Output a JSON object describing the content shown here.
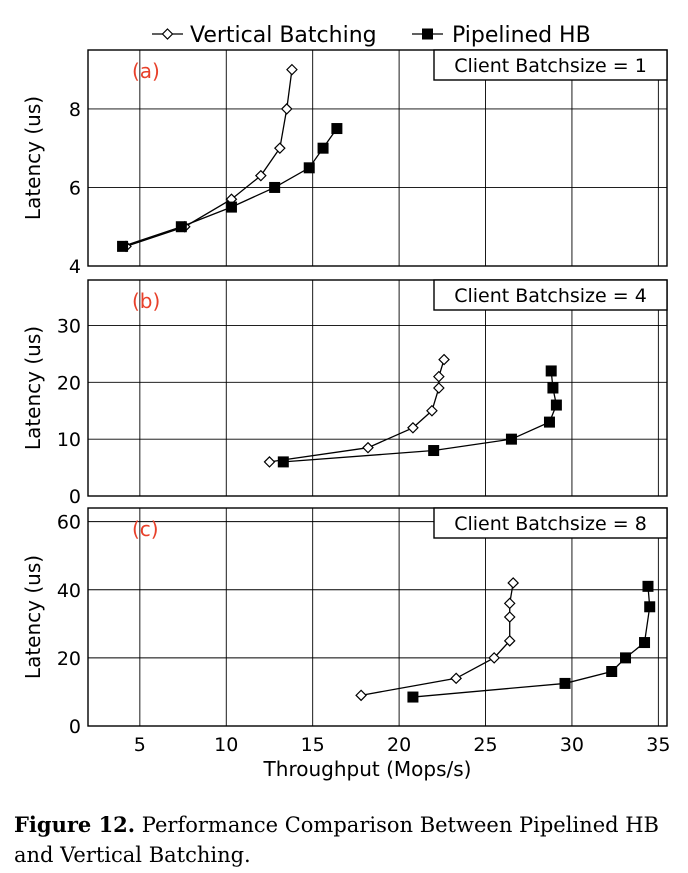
{
  "caption": {
    "label": "Figure 12.",
    "text": "Performance Comparison Between Pipelined HB and Vertical Batching."
  },
  "chart_data": {
    "type": "line",
    "xlabel": "Throughput (Mops/s)",
    "xlim": [
      2,
      35.5
    ],
    "xticks": [
      5,
      10,
      15,
      20,
      25,
      30,
      35
    ],
    "legend": {
      "placement": "top",
      "entries": [
        {
          "name": "Vertical Batching",
          "marker": "open-diamond"
        },
        {
          "name": "Pipelined HB",
          "marker": "filled-square"
        }
      ]
    },
    "grid": true,
    "panels": [
      {
        "label": "(a)",
        "title": "Client Batchsize = 1",
        "ylabel": "Latency (us)",
        "ylim": [
          4,
          9.5
        ],
        "yticks": [
          4,
          6,
          8
        ],
        "series": [
          {
            "name": "Vertical Batching",
            "x": [
              4.2,
              7.6,
              10.3,
              12.0,
              13.1,
              13.5,
              13.8
            ],
            "y": [
              4.5,
              5.0,
              5.7,
              6.3,
              7.0,
              8.0,
              9.0
            ]
          },
          {
            "name": "Pipelined HB",
            "x": [
              4.0,
              7.4,
              10.3,
              12.8,
              14.8,
              15.6,
              16.4
            ],
            "y": [
              4.5,
              5.0,
              5.5,
              6.0,
              6.5,
              7.0,
              7.5
            ]
          }
        ]
      },
      {
        "label": "(b)",
        "title": "Client Batchsize = 4",
        "ylabel": "Latency (us)",
        "ylim": [
          0,
          38
        ],
        "yticks": [
          0,
          10,
          20,
          30
        ],
        "series": [
          {
            "name": "Vertical Batching",
            "x": [
              12.5,
              18.2,
              20.8,
              21.9,
              22.3,
              22.3,
              22.6
            ],
            "y": [
              6,
              8.5,
              12,
              15,
              19,
              21,
              24
            ]
          },
          {
            "name": "Pipelined HB",
            "x": [
              13.3,
              22.0,
              26.5,
              28.7,
              29.1,
              28.9,
              28.8
            ],
            "y": [
              6,
              8,
              10,
              13,
              16,
              19,
              22
            ]
          }
        ]
      },
      {
        "label": "(c)",
        "title": "Client Batchsize = 8",
        "ylabel": "Latency (us)",
        "ylim": [
          0,
          64
        ],
        "yticks": [
          0,
          20,
          40,
          60
        ],
        "series": [
          {
            "name": "Vertical Batching",
            "x": [
              17.8,
              23.3,
              25.5,
              26.4,
              26.4,
              26.4,
              26.6
            ],
            "y": [
              9,
              14,
              20,
              25,
              32,
              36,
              42
            ]
          },
          {
            "name": "Pipelined HB",
            "x": [
              20.8,
              29.6,
              32.3,
              33.1,
              34.2,
              34.5,
              34.4
            ],
            "y": [
              8.5,
              12.5,
              16,
              20,
              24.5,
              35,
              41
            ]
          }
        ]
      }
    ]
  }
}
